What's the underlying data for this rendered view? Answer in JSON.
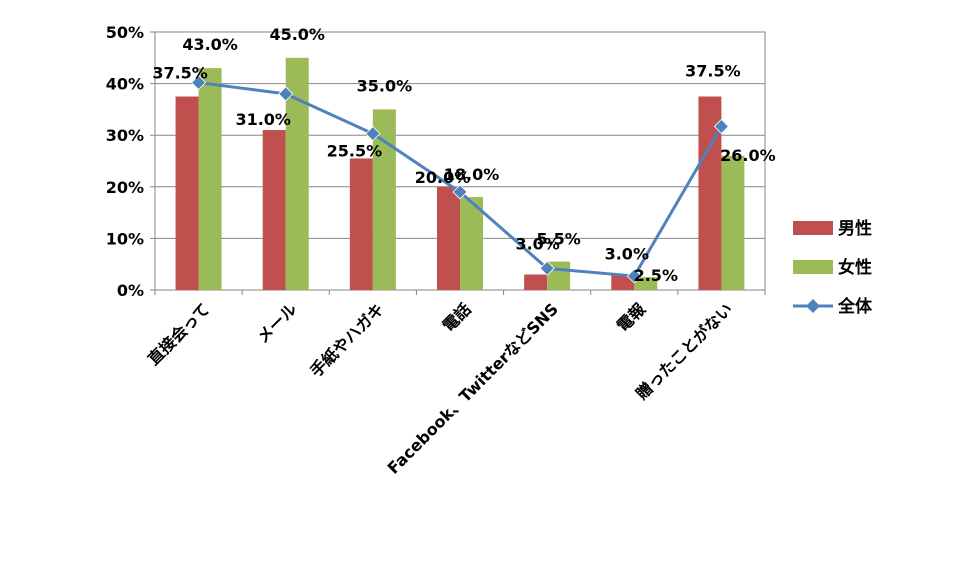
{
  "chart_data": {
    "type": "bar",
    "categories": [
      "直接会って",
      "メール",
      "手紙やハガキ",
      "電話",
      "Facebook、TwitterなどSNS",
      "電報",
      "贈ったことがない"
    ],
    "series": [
      {
        "name": "男性",
        "kind": "bar",
        "color": "#c0504d",
        "values": [
          37.5,
          31.0,
          25.5,
          20.0,
          3.0,
          3.0,
          37.5
        ],
        "labels": [
          "37.5%",
          "31.0%",
          "25.5%",
          "20.0%",
          "3.0%",
          "3.0%",
          "37.5%"
        ]
      },
      {
        "name": "女性",
        "kind": "bar",
        "color": "#9bbb59",
        "values": [
          43.0,
          45.0,
          35.0,
          18.0,
          5.5,
          2.5,
          26.0
        ],
        "labels": [
          "43.0%",
          "45.0%",
          "35.0%",
          "18.0%",
          "5.5%",
          "2.5%",
          "26.0%"
        ]
      },
      {
        "name": "全体",
        "kind": "line",
        "color": "#4f81bd",
        "values": [
          40.2,
          38.0,
          30.3,
          19.0,
          4.2,
          2.7,
          31.7
        ]
      }
    ],
    "yticks": [
      "0%",
      "10%",
      "20%",
      "30%",
      "40%",
      "50%"
    ],
    "ylim": [
      0,
      50
    ],
    "grid": true,
    "legend": "right"
  }
}
